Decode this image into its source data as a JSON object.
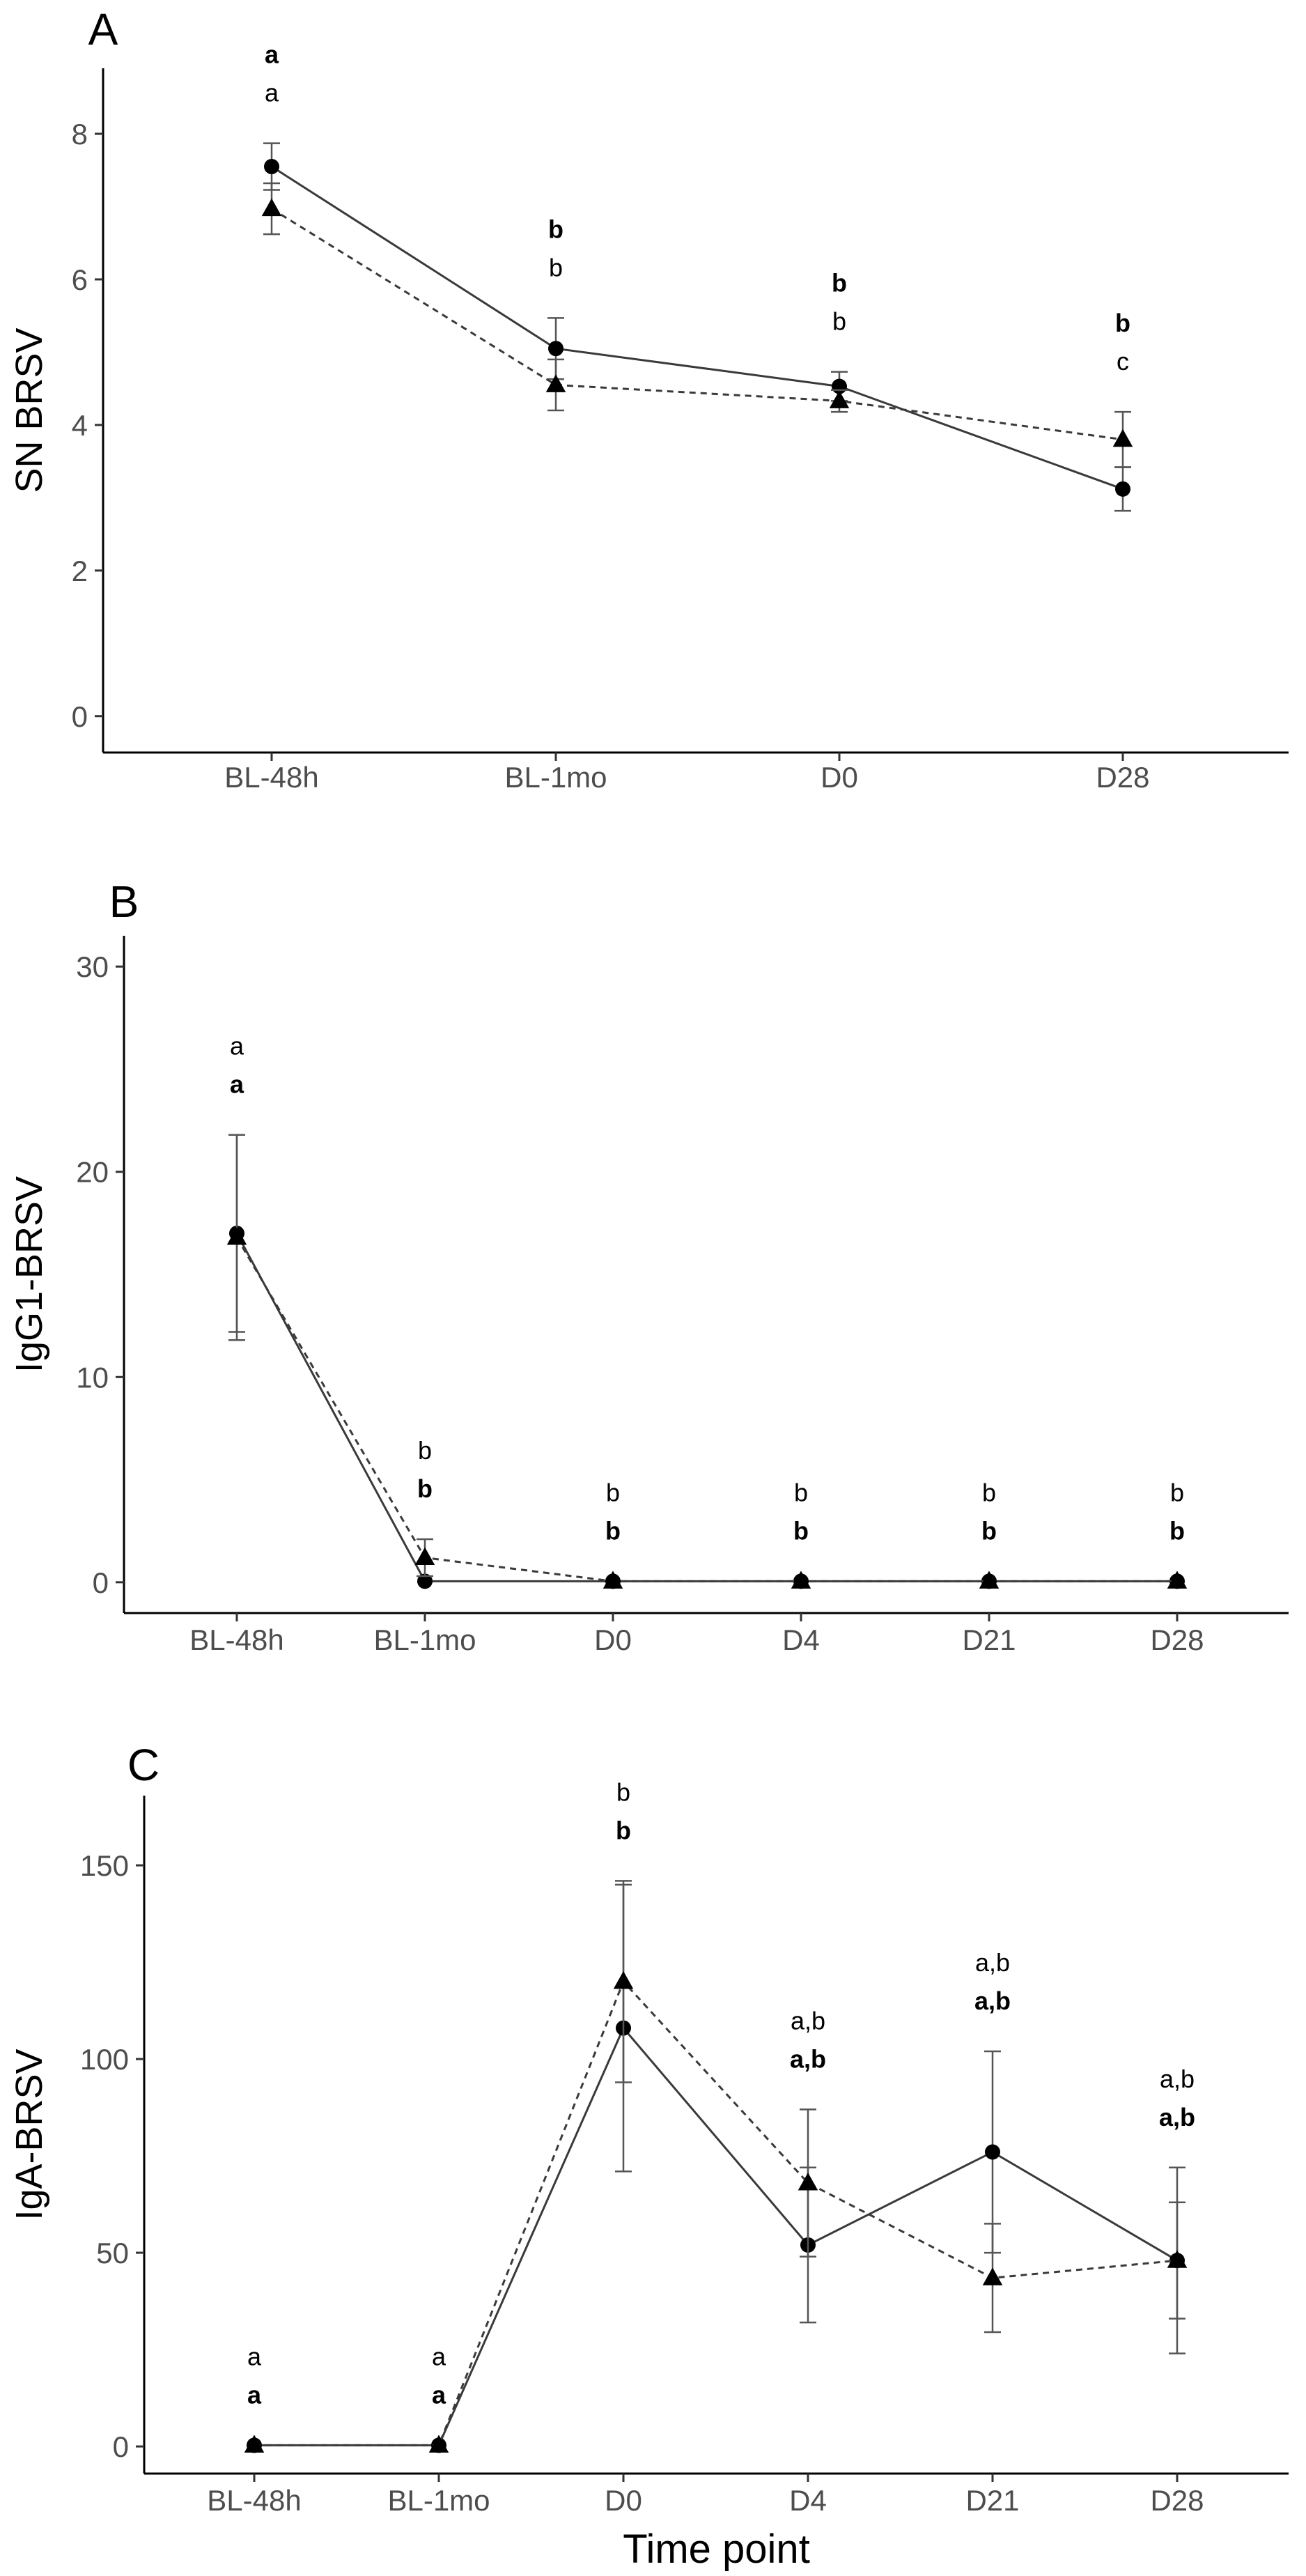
{
  "chart_data": [
    {
      "panel": "A",
      "type": "line",
      "xlabel": "",
      "ylabel": "SN BRSV",
      "categories": [
        "BL-48h",
        "BL-1mo",
        "D0",
        "D28"
      ],
      "ylim": [
        -0.5,
        8.9
      ],
      "yticks": [
        0,
        2,
        4,
        6,
        8
      ],
      "grid": false,
      "series": [
        {
          "marker": "circle",
          "line": "solid",
          "values": [
            7.55,
            5.05,
            4.53,
            3.12
          ],
          "err": [
            0.32,
            0.42,
            0.2,
            0.3
          ]
        },
        {
          "marker": "triangle",
          "line": "dashed",
          "values": [
            6.97,
            4.55,
            4.33,
            3.8
          ],
          "err": [
            0.35,
            0.35,
            0.15,
            0.38
          ]
        }
      ],
      "sig_labels": [
        {
          "bold": [
            "a"
          ],
          "plain": [
            "a"
          ]
        },
        {
          "bold": [
            "b"
          ],
          "plain": [
            "b"
          ]
        },
        {
          "bold": [
            "b"
          ],
          "plain": [
            "b"
          ]
        },
        {
          "bold": [
            "b"
          ],
          "plain": [
            "c"
          ]
        }
      ]
    },
    {
      "panel": "B",
      "type": "line",
      "xlabel": "",
      "ylabel": "IgG1-BRSV",
      "categories": [
        "BL-48h",
        "BL-1mo",
        "D0",
        "D4",
        "D21",
        "D28"
      ],
      "ylim": [
        -1.5,
        31.5
      ],
      "yticks": [
        0,
        10,
        20,
        30
      ],
      "grid": false,
      "series": [
        {
          "marker": "circle",
          "line": "solid",
          "values": [
            17.0,
            0.05,
            0.05,
            0.05,
            0.05,
            0.05
          ],
          "err": [
            4.8,
            0.0,
            0.0,
            0.0,
            0.0,
            0.0
          ]
        },
        {
          "marker": "triangle",
          "line": "dashed",
          "values": [
            16.8,
            1.2,
            0.05,
            0.05,
            0.05,
            0.05
          ],
          "err": [
            5.0,
            0.9,
            0.0,
            0.0,
            0.0,
            0.0
          ]
        }
      ],
      "sig_labels": [
        {
          "bold": [
            "a"
          ],
          "plain": [
            "a"
          ]
        },
        {
          "bold": [
            "b"
          ],
          "plain": [
            "b"
          ]
        },
        {
          "bold": [
            "b"
          ],
          "plain": [
            "b"
          ]
        },
        {
          "bold": [
            "b"
          ],
          "plain": [
            "b"
          ]
        },
        {
          "bold": [
            "b"
          ],
          "plain": [
            "b"
          ]
        },
        {
          "bold": [
            "b"
          ],
          "plain": [
            "b"
          ]
        }
      ]
    },
    {
      "panel": "C",
      "type": "line",
      "xlabel": "Time point",
      "ylabel": "IgA-BRSV",
      "categories": [
        "BL-48h",
        "BL-1mo",
        "D0",
        "D4",
        "D21",
        "D28"
      ],
      "ylim": [
        -7,
        168
      ],
      "yticks": [
        0,
        50,
        100,
        150
      ],
      "grid": false,
      "series": [
        {
          "marker": "circle",
          "line": "solid",
          "values": [
            0.3,
            0.3,
            108,
            52,
            76,
            48
          ],
          "err": [
            0,
            0,
            37,
            20,
            26,
            24
          ]
        },
        {
          "marker": "triangle",
          "line": "dashed",
          "values": [
            0.3,
            0.3,
            120,
            68,
            43.5,
            48
          ],
          "err": [
            0,
            0,
            26,
            19,
            14,
            15
          ]
        }
      ],
      "sig_labels": [
        {
          "bold": [
            "a"
          ],
          "plain": [
            "a"
          ]
        },
        {
          "bold": [
            "a"
          ],
          "plain": [
            "a"
          ]
        },
        {
          "bold": [
            "b"
          ],
          "plain": [
            "b"
          ]
        },
        {
          "bold": [
            "a",
            ",",
            "b"
          ],
          "plain": [
            "a",
            ",",
            "b"
          ]
        },
        {
          "bold": [
            "a",
            ",",
            "b"
          ],
          "plain": [
            "a",
            ",",
            "b"
          ]
        },
        {
          "bold": [
            "a",
            ",",
            "b"
          ],
          "plain": [
            "a",
            ",",
            "b"
          ]
        }
      ]
    }
  ]
}
